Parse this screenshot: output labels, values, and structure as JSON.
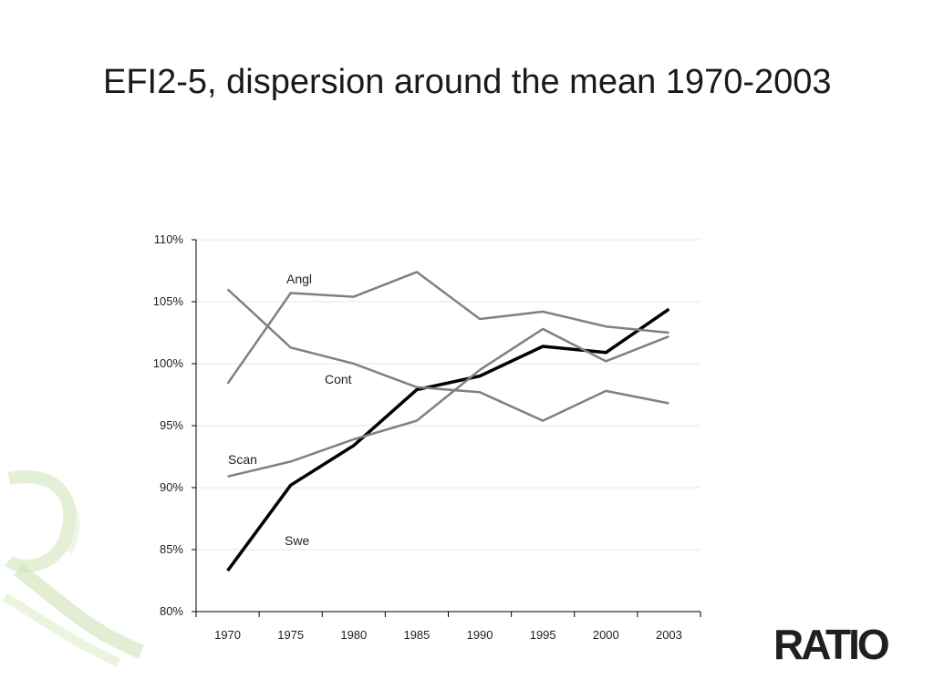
{
  "slide": {
    "title": "EFI2-5, dispersion around the mean 1970-2003",
    "logo_text": "RATIO"
  },
  "colors": {
    "swe_line": "#000000",
    "other_lines": "#808080",
    "grid": "#e6e6e6",
    "axis": "#000000",
    "watermark": "#cfe3b8"
  },
  "chart_data": {
    "type": "line",
    "categories": [
      "1970",
      "1975",
      "1980",
      "1985",
      "1990",
      "1995",
      "2000",
      "2003"
    ],
    "ylim": [
      80,
      110
    ],
    "ytick_values": [
      80,
      85,
      90,
      95,
      100,
      105,
      110
    ],
    "ytick_labels": [
      "80%",
      "85%",
      "90%",
      "95%",
      "100%",
      "105%",
      "110%"
    ],
    "grid": true,
    "series": [
      {
        "name": "Swe",
        "values": [
          83.3,
          90.2,
          93.4,
          97.9,
          99.0,
          101.4,
          100.9,
          104.4
        ]
      },
      {
        "name": "Angl",
        "values": [
          98.4,
          105.7,
          105.4,
          107.4,
          103.6,
          104.2,
          103.0,
          102.5
        ]
      },
      {
        "name": "Cont",
        "values": [
          106.0,
          101.3,
          100.0,
          98.1,
          97.7,
          95.4,
          97.8,
          96.8
        ]
      },
      {
        "name": "Scan",
        "values": [
          90.9,
          92.1,
          93.9,
          95.4,
          99.5,
          102.8,
          100.2,
          102.2
        ]
      }
    ]
  }
}
